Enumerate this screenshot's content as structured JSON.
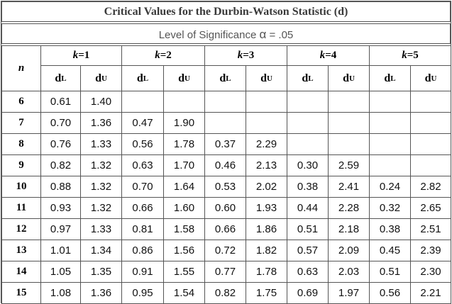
{
  "title": "Critical Values for the Durbin-Watson Statistic (d)",
  "subtitle": {
    "prefix": "Level of Significance",
    "alpha_symbol": "α",
    "suffix": "= .05"
  },
  "header": {
    "n_label": "n",
    "k_var": "k",
    "k_groups": [
      {
        "value": "1"
      },
      {
        "value": "2"
      },
      {
        "value": "3"
      },
      {
        "value": "4"
      },
      {
        "value": "5"
      }
    ],
    "dl_main": "d",
    "dl_sub": "L",
    "du_main": "d",
    "du_sub": "U"
  },
  "rows": [
    {
      "n": "6",
      "values": [
        "0.61",
        "1.40",
        "",
        "",
        "",
        "",
        "",
        "",
        "",
        ""
      ]
    },
    {
      "n": "7",
      "values": [
        "0.70",
        "1.36",
        "0.47",
        "1.90",
        "",
        "",
        "",
        "",
        "",
        ""
      ]
    },
    {
      "n": "8",
      "values": [
        "0.76",
        "1.33",
        "0.56",
        "1.78",
        "0.37",
        "2.29",
        "",
        "",
        "",
        ""
      ]
    },
    {
      "n": "9",
      "values": [
        "0.82",
        "1.32",
        "0.63",
        "1.70",
        "0.46",
        "2.13",
        "0.30",
        "2.59",
        "",
        ""
      ]
    },
    {
      "n": "10",
      "values": [
        "0.88",
        "1.32",
        "0.70",
        "1.64",
        "0.53",
        "2.02",
        "0.38",
        "2.41",
        "0.24",
        "2.82"
      ]
    },
    {
      "n": "11",
      "values": [
        "0.93",
        "1.32",
        "0.66",
        "1.60",
        "0.60",
        "1.93",
        "0.44",
        "2.28",
        "0.32",
        "2.65"
      ]
    },
    {
      "n": "12",
      "values": [
        "0.97",
        "1.33",
        "0.81",
        "1.58",
        "0.66",
        "1.86",
        "0.51",
        "2.18",
        "0.38",
        "2.51"
      ]
    },
    {
      "n": "13",
      "values": [
        "1.01",
        "1.34",
        "0.86",
        "1.56",
        "0.72",
        "1.82",
        "0.57",
        "2.09",
        "0.45",
        "2.39"
      ]
    },
    {
      "n": "14",
      "values": [
        "1.05",
        "1.35",
        "0.91",
        "1.55",
        "0.77",
        "1.78",
        "0.63",
        "2.03",
        "0.51",
        "2.30"
      ]
    },
    {
      "n": "15",
      "values": [
        "1.08",
        "1.36",
        "0.95",
        "1.54",
        "0.82",
        "1.75",
        "0.69",
        "1.97",
        "0.56",
        "2.21"
      ]
    }
  ]
}
